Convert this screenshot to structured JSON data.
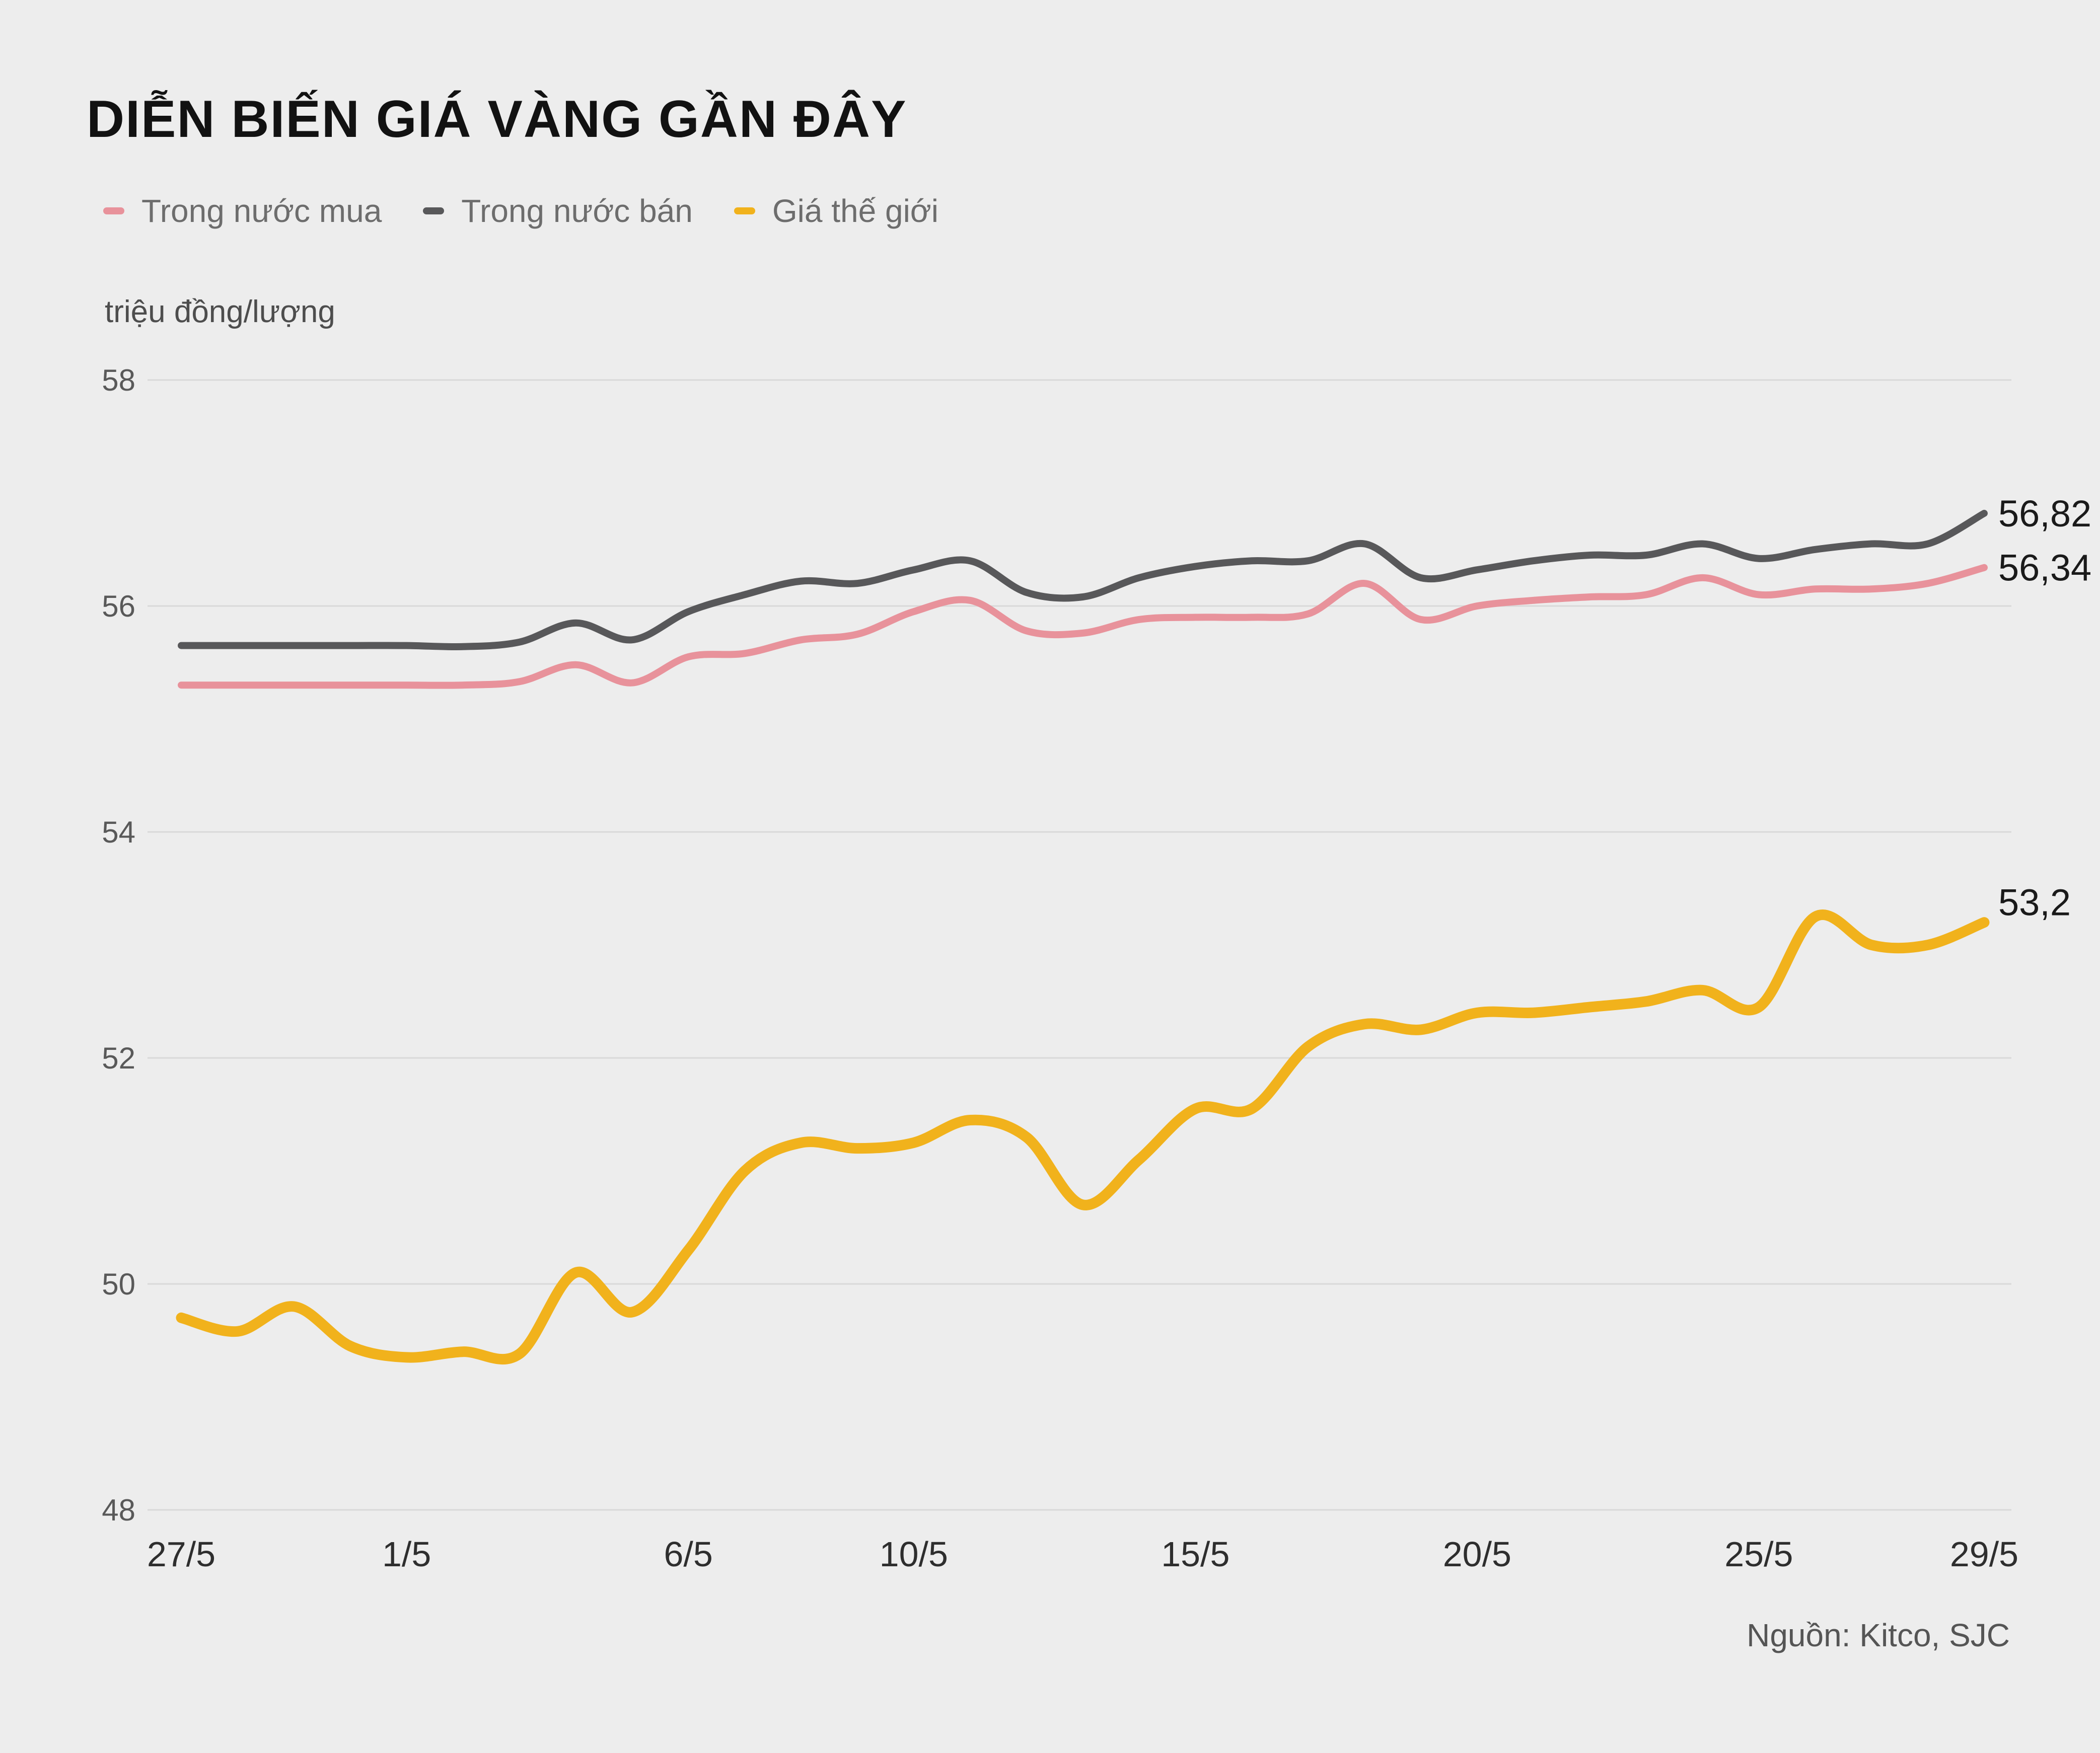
{
  "chart_data": {
    "type": "line",
    "title": "DIỄN BIẾN GIÁ VÀNG GẦN ĐÂY",
    "ylabel": "triệu đồng/lượng",
    "source": "Nguồn: Kitco, SJC",
    "ylim": [
      48,
      58
    ],
    "y_ticks": [
      58,
      56,
      54,
      52,
      50,
      48
    ],
    "n_points": 33,
    "x_ticks": [
      {
        "index": 0,
        "label": "27/5"
      },
      {
        "index": 4,
        "label": "1/5"
      },
      {
        "index": 9,
        "label": "6/5"
      },
      {
        "index": 13,
        "label": "10/5"
      },
      {
        "index": 18,
        "label": "15/5"
      },
      {
        "index": 23,
        "label": "20/5"
      },
      {
        "index": 28,
        "label": "25/5"
      },
      {
        "index": 32,
        "label": "29/5"
      }
    ],
    "grid": "horizontal",
    "legend_position": "top-left",
    "colors": {
      "background": "#ededed",
      "grid": "#d9d9d9",
      "axis_text": "#595959",
      "axis_text_dark": "#2e2e2e",
      "end_label": "#1a1a1a",
      "title": "#121212"
    },
    "series": [
      {
        "name": "Trong nước mua",
        "color": "#e8929b",
        "end_label": "56,34",
        "values": [
          55.3,
          55.3,
          55.3,
          55.3,
          55.3,
          55.3,
          55.33,
          55.48,
          55.32,
          55.55,
          55.58,
          55.7,
          55.75,
          55.95,
          56.05,
          55.78,
          55.76,
          55.88,
          55.9,
          55.9,
          55.93,
          56.2,
          55.88,
          56.0,
          56.05,
          56.08,
          56.1,
          56.25,
          56.1,
          56.15,
          56.15,
          56.2,
          56.34
        ]
      },
      {
        "name": "Trong nước bán",
        "color": "#58585a",
        "end_label": "56,82",
        "values": [
          55.65,
          55.65,
          55.65,
          55.65,
          55.65,
          55.64,
          55.68,
          55.85,
          55.7,
          55.95,
          56.1,
          56.22,
          56.2,
          56.32,
          56.4,
          56.12,
          56.08,
          56.25,
          56.35,
          56.4,
          56.4,
          56.55,
          56.25,
          56.32,
          56.4,
          56.45,
          56.45,
          56.55,
          56.42,
          56.5,
          56.55,
          56.55,
          56.82
        ]
      },
      {
        "name": "Giá thế giới",
        "color": "#f1b21c",
        "end_label": "53,2",
        "values": [
          49.7,
          49.58,
          49.8,
          49.45,
          49.35,
          49.4,
          49.38,
          50.1,
          49.75,
          50.3,
          51.0,
          51.25,
          51.2,
          51.25,
          51.45,
          51.3,
          50.7,
          51.1,
          51.55,
          51.55,
          52.1,
          52.3,
          52.25,
          52.4,
          52.4,
          52.45,
          52.5,
          52.6,
          52.45,
          53.25,
          53.0,
          53.0,
          53.2
        ]
      }
    ]
  }
}
